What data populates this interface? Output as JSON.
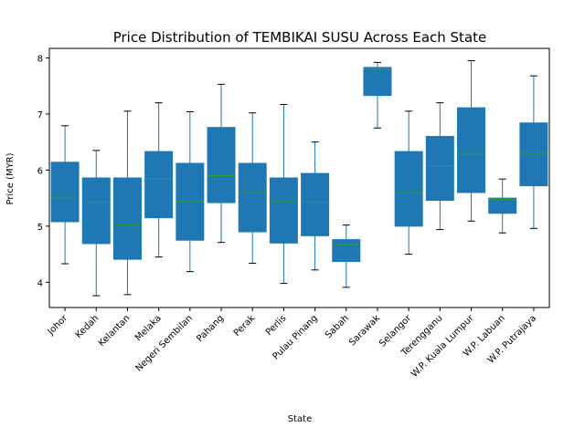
{
  "chart_data": {
    "type": "boxplot",
    "title": "Price Distribution of TEMBIKAI SUSU Across Each State",
    "xlabel": "State",
    "ylabel": "Price (MYR)",
    "ylim": [
      3.55,
      8.17
    ],
    "yticks": [
      4,
      5,
      6,
      7,
      8
    ],
    "grid": false,
    "colors": {
      "box": "#1f77b4",
      "median": "#2ca02c",
      "whisker": "#1f77b4"
    },
    "categories": [
      "Johor",
      "Kedah",
      "Kelantan",
      "Melaka",
      "Negeri Sembilan",
      "Pahang",
      "Perak",
      "Perlis",
      "Pulau Pinang",
      "Sabah",
      "Sarawak",
      "Selangor",
      "Terengganu",
      "W.P. Kuala Lumpur",
      "W.P. Labuan",
      "W.P. Putrajaya"
    ],
    "boxes": [
      {
        "label": "Johor",
        "whislo": 4.33,
        "q1": 5.08,
        "med": 5.5,
        "q3": 6.14,
        "whishi": 6.79
      },
      {
        "label": "Kedah",
        "whislo": 3.76,
        "q1": 4.69,
        "med": 5.43,
        "q3": 5.86,
        "whishi": 6.35
      },
      {
        "label": "Kelantan",
        "whislo": 3.78,
        "q1": 4.41,
        "med": 5.02,
        "q3": 5.86,
        "whishi": 7.05
      },
      {
        "label": "Melaka",
        "whislo": 4.45,
        "q1": 5.15,
        "med": 5.85,
        "q3": 6.33,
        "whishi": 7.2
      },
      {
        "label": "Negeri Sembilan",
        "whislo": 4.19,
        "q1": 4.75,
        "med": 5.44,
        "q3": 6.12,
        "whishi": 7.04
      },
      {
        "label": "Pahang",
        "whislo": 4.71,
        "q1": 5.42,
        "med": 5.9,
        "q3": 6.76,
        "whishi": 7.53
      },
      {
        "label": "Perak",
        "whislo": 4.34,
        "q1": 4.9,
        "med": 5.6,
        "q3": 6.12,
        "whishi": 7.02
      },
      {
        "label": "Perlis",
        "whislo": 3.98,
        "q1": 4.7,
        "med": 5.44,
        "q3": 5.86,
        "whishi": 7.17
      },
      {
        "label": "Pulau Pinang",
        "whislo": 4.22,
        "q1": 4.83,
        "med": 5.43,
        "q3": 5.94,
        "whishi": 6.5
      },
      {
        "label": "Sabah",
        "whislo": 3.91,
        "q1": 4.37,
        "med": 4.67,
        "q3": 4.76,
        "whishi": 5.02
      },
      {
        "label": "Sarawak",
        "whislo": 6.75,
        "q1": 7.33,
        "med": 7.8,
        "q3": 7.83,
        "whishi": 7.92
      },
      {
        "label": "Selangor",
        "whislo": 4.5,
        "q1": 5.0,
        "med": 5.6,
        "q3": 6.33,
        "whishi": 7.05
      },
      {
        "label": "Terengganu",
        "whislo": 4.94,
        "q1": 5.46,
        "med": 6.08,
        "q3": 6.6,
        "whishi": 7.2
      },
      {
        "label": "W.P. Kuala Lumpur",
        "whislo": 5.09,
        "q1": 5.6,
        "med": 6.28,
        "q3": 7.11,
        "whishi": 7.95
      },
      {
        "label": "W.P. Labuan",
        "whislo": 4.88,
        "q1": 5.23,
        "med": 5.48,
        "q3": 5.5,
        "whishi": 5.84
      },
      {
        "label": "W.P. Putrajaya",
        "whislo": 4.96,
        "q1": 5.72,
        "med": 6.3,
        "q3": 6.84,
        "whishi": 7.68
      }
    ]
  }
}
